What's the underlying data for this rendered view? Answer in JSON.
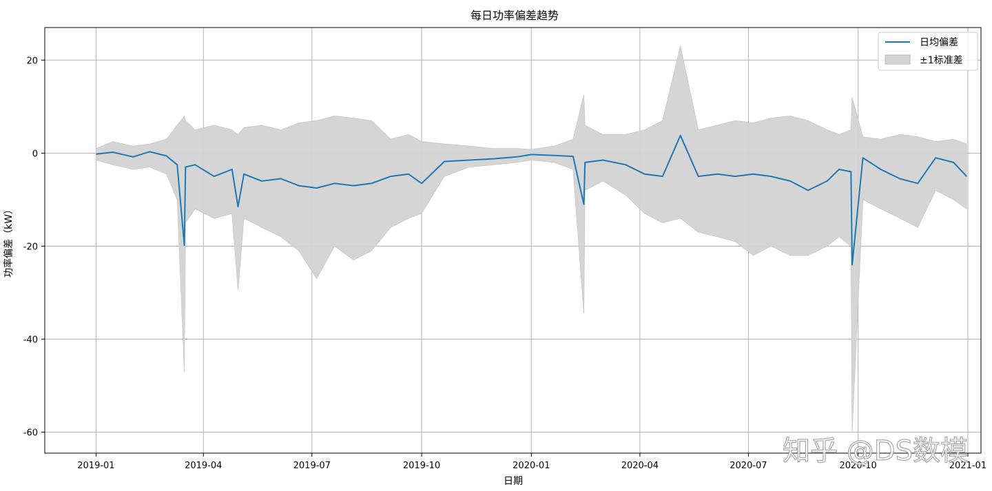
{
  "chart_data": {
    "type": "line",
    "title": "每日功率偏差趋势",
    "xlabel": "日期",
    "ylabel": "功率偏差（kW）",
    "x_ticks": [
      "2019-01",
      "2019-04",
      "2019-07",
      "2019-10",
      "2020-01",
      "2020-04",
      "2020-07",
      "2020-10",
      "2021-01"
    ],
    "x_tick_dates": [
      "2019-01-01",
      "2019-04-01",
      "2019-07-01",
      "2019-10-01",
      "2020-01-01",
      "2020-04-01",
      "2020-07-01",
      "2020-10-01",
      "2021-01-01"
    ],
    "y_ticks": [
      20,
      0,
      -20,
      -40,
      -60
    ],
    "xlim": [
      "2018-11-19",
      "2021-01-12"
    ],
    "ylim": [
      -64.5,
      27
    ],
    "grid": true,
    "legend_position": "top-right",
    "x": [
      "2019-01-01",
      "2019-01-15",
      "2019-02-01",
      "2019-02-15",
      "2019-03-01",
      "2019-03-10",
      "2019-03-16",
      "2019-03-17",
      "2019-03-25",
      "2019-04-10",
      "2019-04-25",
      "2019-04-30",
      "2019-05-05",
      "2019-05-20",
      "2019-06-05",
      "2019-06-20",
      "2019-07-05",
      "2019-07-20",
      "2019-08-05",
      "2019-08-20",
      "2019-09-05",
      "2019-09-20",
      "2019-10-01",
      "2019-10-20",
      "2019-11-10",
      "2019-12-01",
      "2019-12-20",
      "2020-01-01",
      "2020-01-20",
      "2020-02-05",
      "2020-02-14",
      "2020-02-15",
      "2020-03-01",
      "2020-03-20",
      "2020-04-05",
      "2020-04-20",
      "2020-05-05",
      "2020-05-20",
      "2020-06-05",
      "2020-06-20",
      "2020-07-05",
      "2020-07-20",
      "2020-08-05",
      "2020-08-20",
      "2020-09-05",
      "2020-09-15",
      "2020-09-25",
      "2020-09-26",
      "2020-10-05",
      "2020-10-20",
      "2020-11-05",
      "2020-11-20",
      "2020-12-05",
      "2020-12-20",
      "2020-12-31"
    ],
    "series": [
      {
        "name": "日均偏差",
        "color": "#1f77b4",
        "values": [
          -0.2,
          0.2,
          -0.8,
          0.3,
          -0.6,
          -2.5,
          -19.8,
          -3.0,
          -2.5,
          -5.0,
          -3.5,
          -11.5,
          -4.5,
          -6.0,
          -5.5,
          -7.0,
          -7.5,
          -6.5,
          -7.0,
          -6.5,
          -5.0,
          -4.5,
          -6.5,
          -1.8,
          -1.5,
          -1.2,
          -0.8,
          -0.3,
          -0.5,
          -0.7,
          -11.0,
          -2.0,
          -1.5,
          -2.5,
          -4.5,
          -5.0,
          3.8,
          -5.0,
          -4.5,
          -5.0,
          -4.5,
          -5.0,
          -6.0,
          -8.0,
          -6.0,
          -3.5,
          -4.0,
          -24.0,
          -1.0,
          -3.5,
          -5.5,
          -6.5,
          -1.0,
          -2.0,
          -5.0
        ]
      },
      {
        "name": "±1标准差",
        "color": "#d3d3d3",
        "upper": [
          1.0,
          2.5,
          1.5,
          2.0,
          3.0,
          6.0,
          8.0,
          7.0,
          5.0,
          6.0,
          5.0,
          4.0,
          5.5,
          6.0,
          5.0,
          6.5,
          7.0,
          8.0,
          7.5,
          7.0,
          3.0,
          4.0,
          2.5,
          2.0,
          1.5,
          1.0,
          1.0,
          0.8,
          1.5,
          3.0,
          12.5,
          6.0,
          4.0,
          4.0,
          5.0,
          7.0,
          23.0,
          5.0,
          6.0,
          7.0,
          6.5,
          7.5,
          8.0,
          7.0,
          5.0,
          4.0,
          5.0,
          12.0,
          3.5,
          3.0,
          4.0,
          3.5,
          2.5,
          3.0,
          2.0
        ],
        "lower": [
          -1.5,
          -2.5,
          -3.5,
          -3.0,
          -4.5,
          -10.0,
          -47.0,
          -15.0,
          -12.0,
          -14.0,
          -13.0,
          -29.5,
          -14.0,
          -16.0,
          -18.0,
          -21.0,
          -27.0,
          -20.0,
          -23.0,
          -21.0,
          -16.0,
          -14.0,
          -13.0,
          -5.0,
          -3.0,
          -2.5,
          -2.0,
          -1.5,
          -2.0,
          -3.5,
          -34.5,
          -8.0,
          -6.0,
          -9.0,
          -13.0,
          -15.0,
          -14.0,
          -17.0,
          -18.0,
          -19.0,
          -22.0,
          -20.0,
          -22.0,
          -22.0,
          -20.0,
          -18.0,
          -20.0,
          -60.0,
          -10.0,
          -12.0,
          -14.0,
          -16.0,
          -8.0,
          -10.0,
          -12.0
        ]
      }
    ]
  },
  "watermark": "知乎 @DS数模"
}
